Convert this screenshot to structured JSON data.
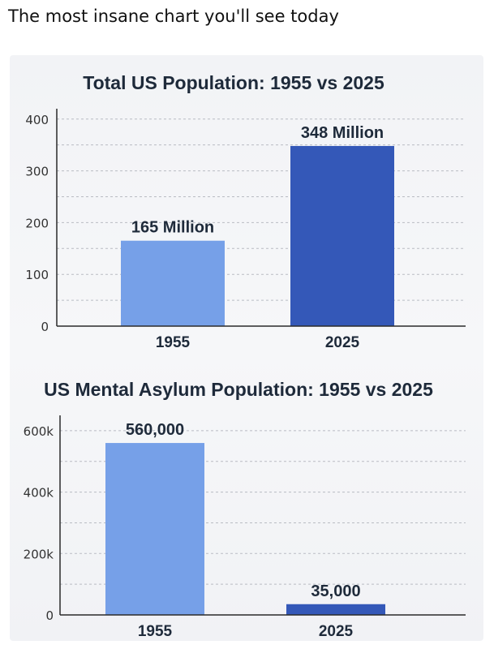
{
  "post": {
    "title": "The most insane chart you'll see today"
  },
  "colors": {
    "light_bar": "#76a0e8",
    "dark_bar": "#3458b8"
  },
  "chart_data": [
    {
      "type": "bar",
      "title": "Total US Population: 1955 vs 2025",
      "categories": [
        "1955",
        "2025"
      ],
      "values": [
        165,
        348
      ],
      "data_labels": [
        "165 Million",
        "348 Million"
      ],
      "y_ticks": [
        "0",
        "100",
        "200",
        "300",
        "400"
      ],
      "y_tick_values": [
        0,
        100,
        200,
        300,
        400
      ],
      "ylim": [
        0,
        420
      ],
      "xlabel": "",
      "ylabel": "",
      "grid": true
    },
    {
      "type": "bar",
      "title": "US Mental Asylum Population: 1955 vs 2025",
      "categories": [
        "1955",
        "2025"
      ],
      "values": [
        560000,
        35000
      ],
      "data_labels": [
        "560,000",
        "35,000"
      ],
      "y_ticks": [
        "0",
        "200k",
        "400k",
        "600k"
      ],
      "y_tick_values": [
        0,
        200000,
        400000,
        600000
      ],
      "ylim": [
        0,
        650000
      ],
      "xlabel": "",
      "ylabel": "",
      "grid": true
    }
  ]
}
